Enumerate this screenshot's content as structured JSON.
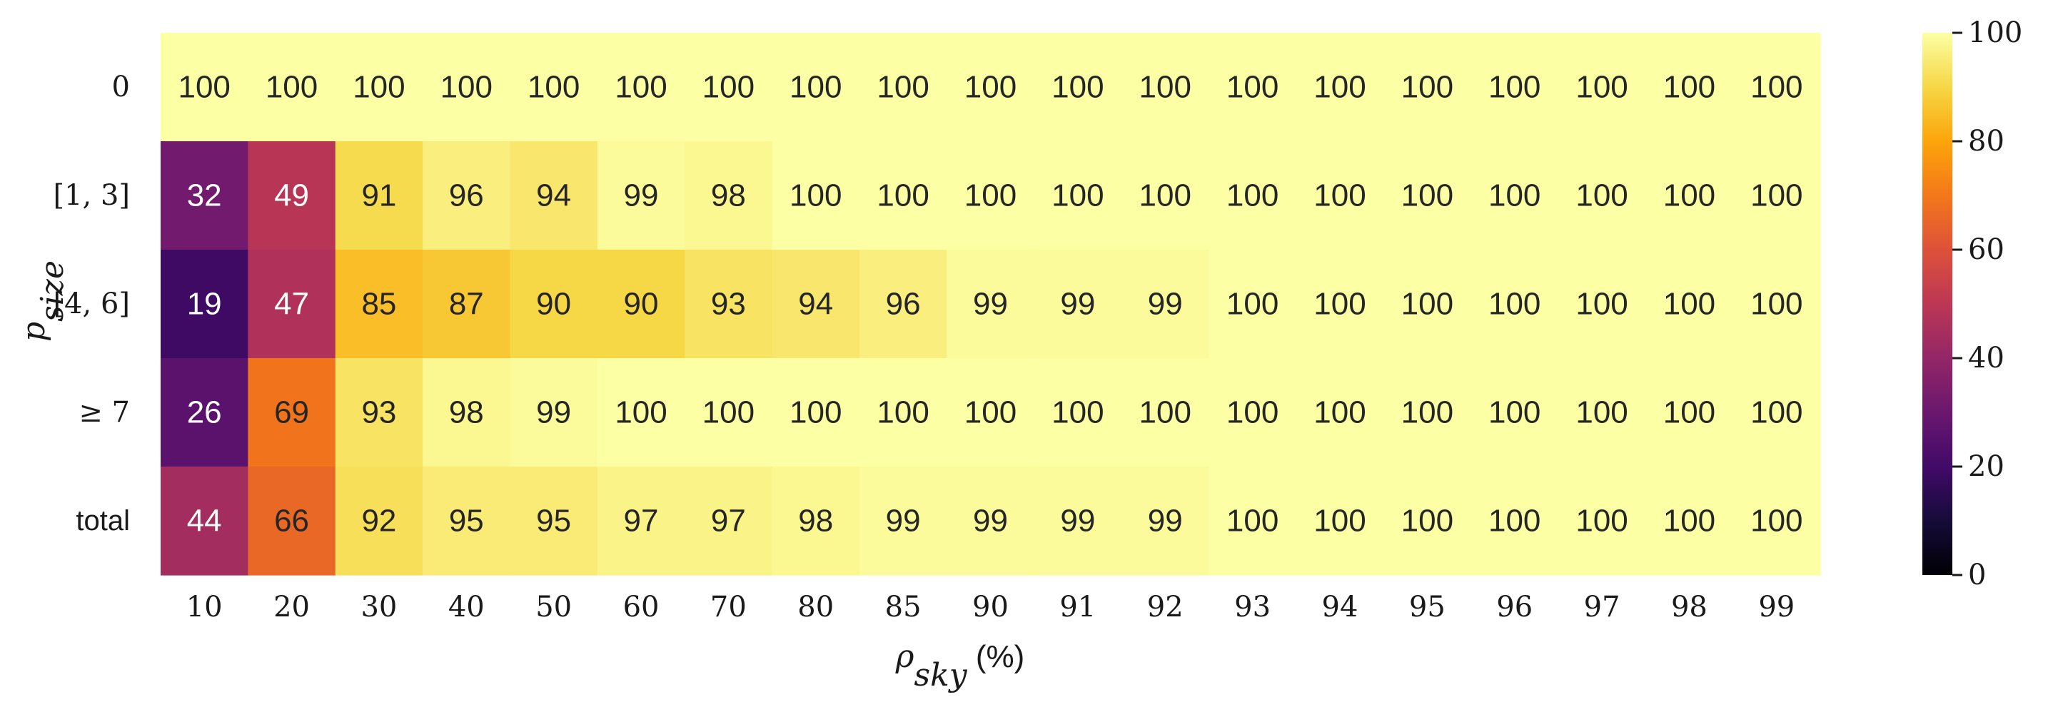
{
  "chart_data": {
    "type": "heatmap",
    "xlabel": "ρsky (%)",
    "xlabel_parts": {
      "main": "ρ",
      "sub": "sky",
      "unit": " (%)"
    },
    "ylabel": "psize",
    "ylabel_parts": {
      "main": "p",
      "sub": "size"
    },
    "x_categories": [
      "10",
      "20",
      "30",
      "40",
      "50",
      "60",
      "70",
      "80",
      "85",
      "90",
      "91",
      "92",
      "93",
      "94",
      "95",
      "96",
      "97",
      "98",
      "99"
    ],
    "y_categories": [
      "0",
      "[1, 3]",
      "[4, 6]",
      "≥ 7",
      "total"
    ],
    "values": [
      [
        100,
        100,
        100,
        100,
        100,
        100,
        100,
        100,
        100,
        100,
        100,
        100,
        100,
        100,
        100,
        100,
        100,
        100,
        100
      ],
      [
        32,
        49,
        91,
        96,
        94,
        99,
        98,
        100,
        100,
        100,
        100,
        100,
        100,
        100,
        100,
        100,
        100,
        100,
        100
      ],
      [
        19,
        47,
        85,
        87,
        90,
        90,
        93,
        94,
        96,
        99,
        99,
        99,
        100,
        100,
        100,
        100,
        100,
        100,
        100
      ],
      [
        26,
        69,
        93,
        98,
        99,
        100,
        100,
        100,
        100,
        100,
        100,
        100,
        100,
        100,
        100,
        100,
        100,
        100,
        100
      ],
      [
        44,
        66,
        92,
        95,
        95,
        97,
        97,
        98,
        99,
        99,
        99,
        99,
        100,
        100,
        100,
        100,
        100,
        100,
        100
      ]
    ],
    "colormap": "inferno",
    "colorbar": {
      "range": [
        0,
        100
      ],
      "ticks": [
        "0",
        "20",
        "40",
        "60",
        "80",
        "100"
      ]
    },
    "grid": false,
    "legend": "colorbar-right"
  }
}
